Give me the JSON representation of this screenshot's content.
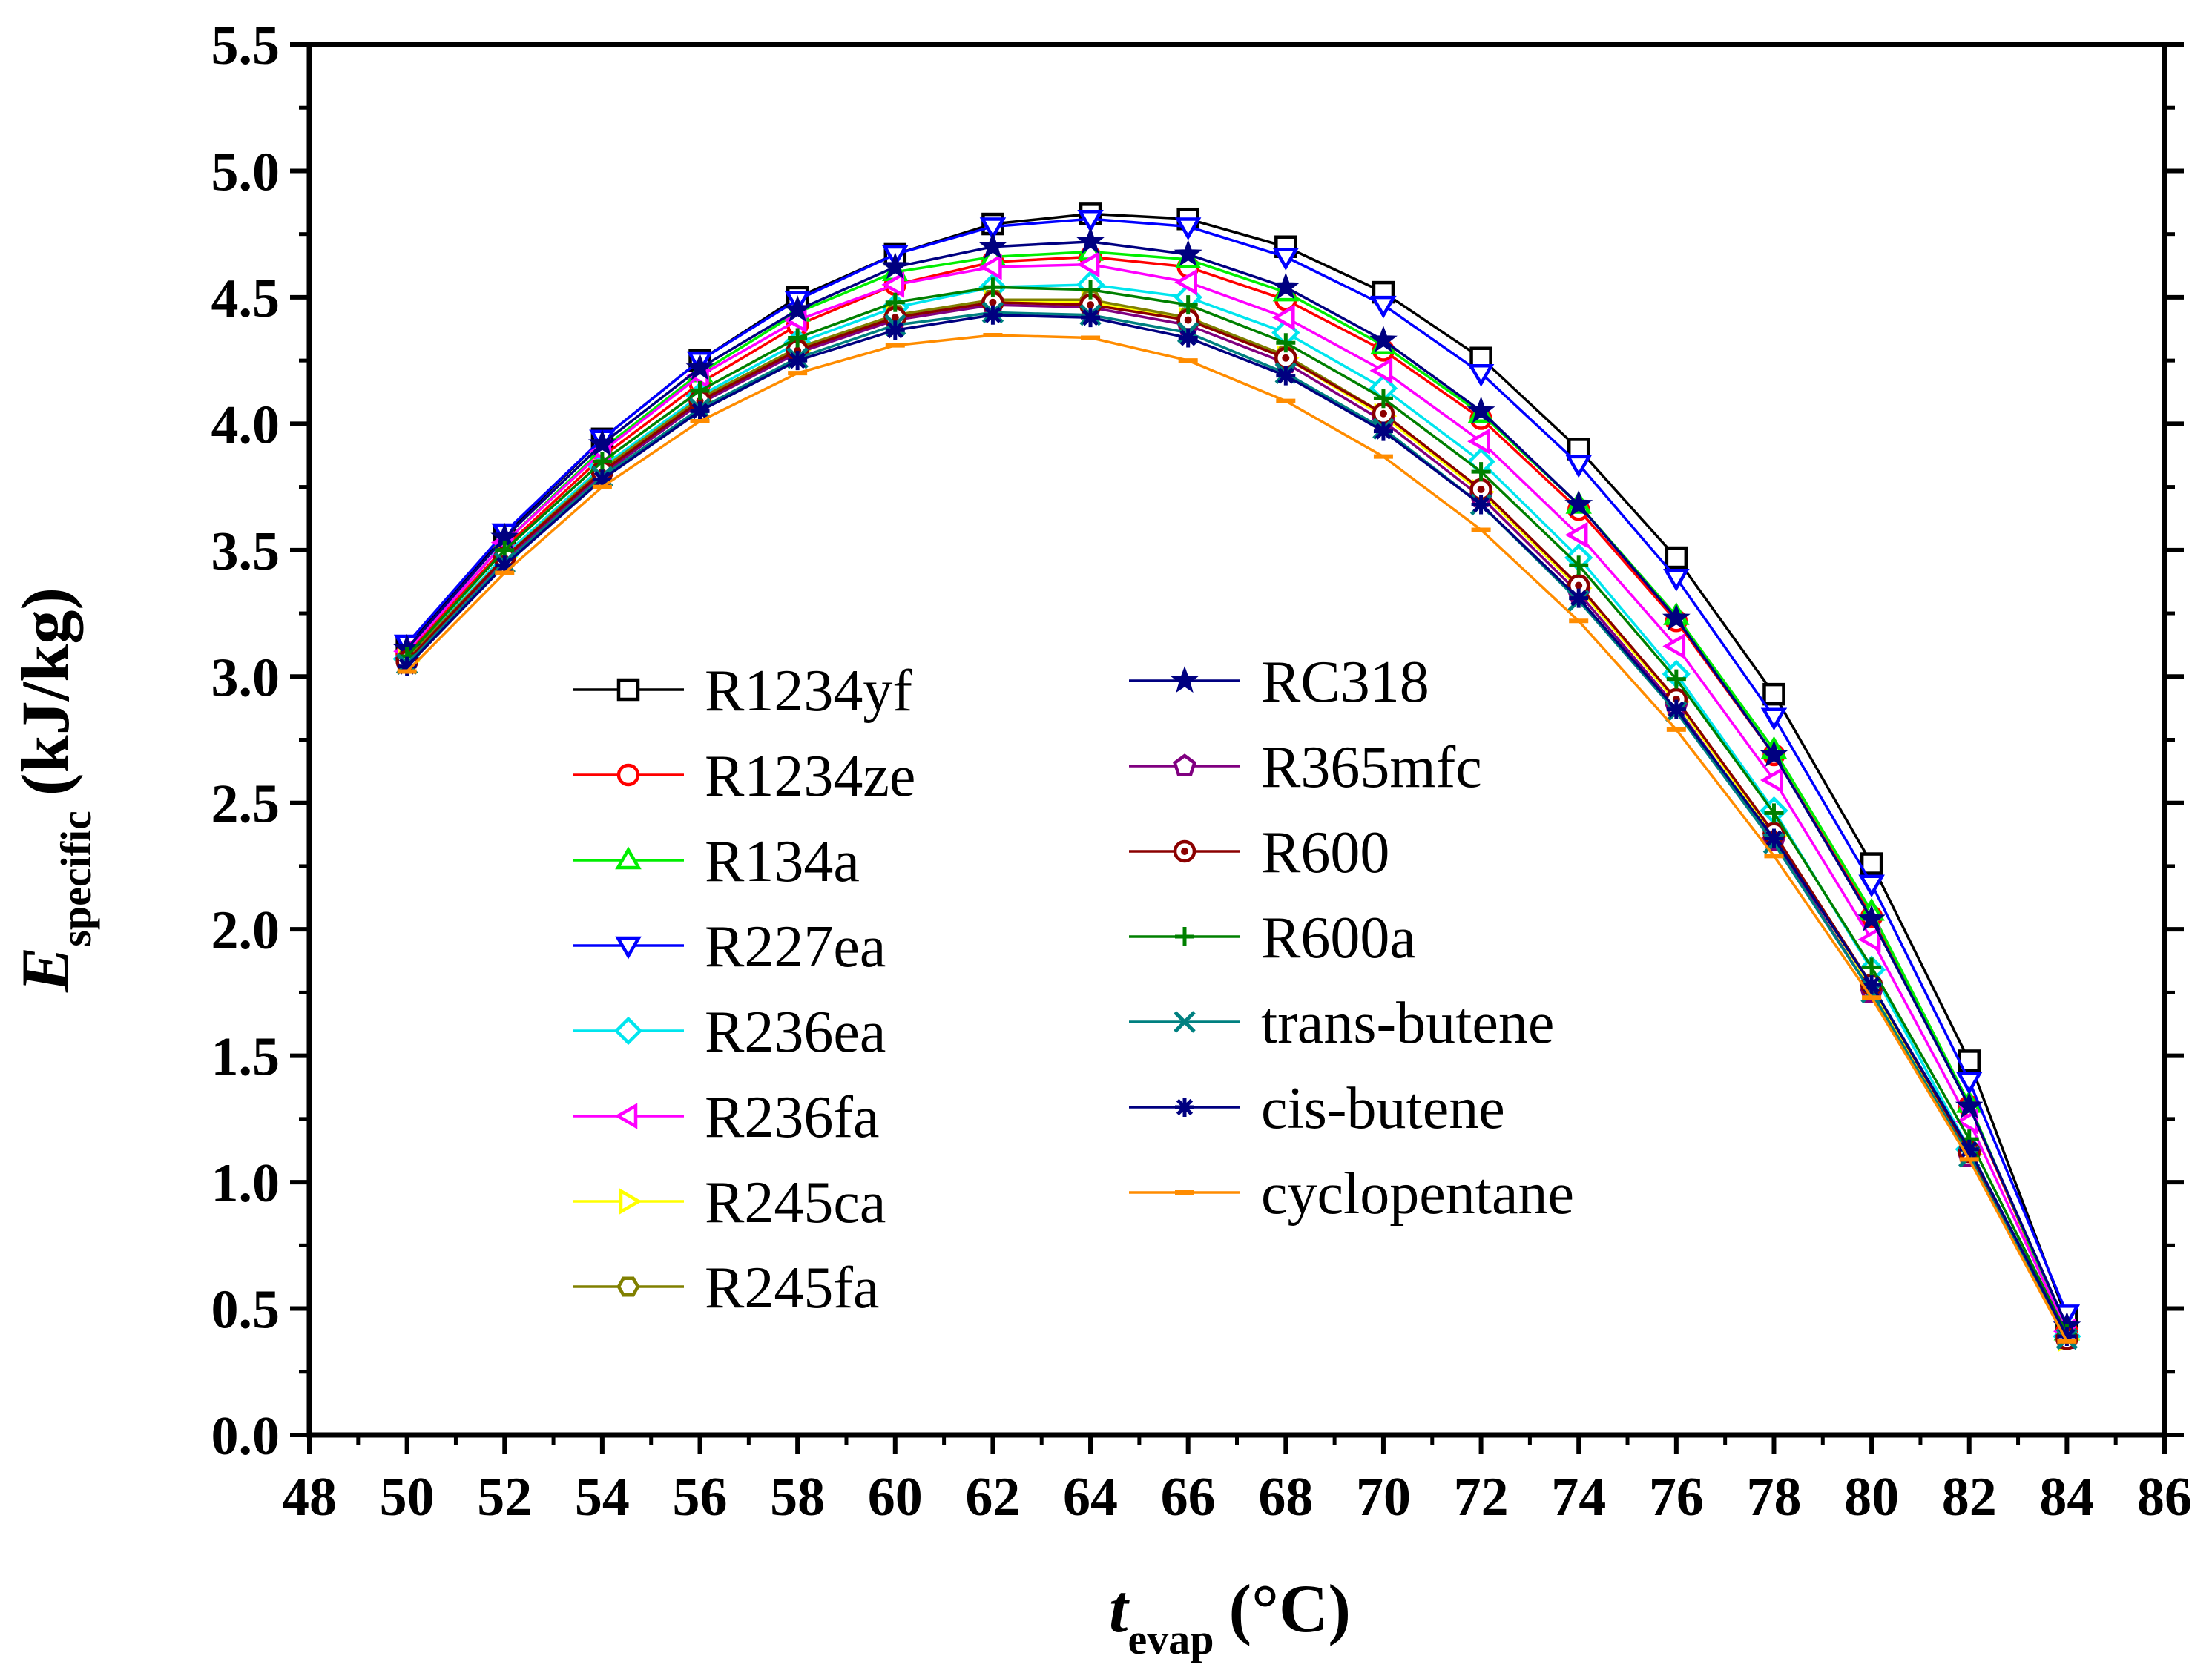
{
  "chart_data": {
    "type": "line",
    "xlabel": {
      "symbol": "t",
      "subscript": "evap",
      "unit": "(°C)"
    },
    "ylabel": {
      "symbol": "E",
      "subscript": "specific",
      "unit": "(kJ/kg)"
    },
    "xlim": [
      48,
      86
    ],
    "ylim": [
      0.0,
      5.5
    ],
    "x_major_ticks": [
      48,
      50,
      52,
      54,
      56,
      58,
      60,
      62,
      64,
      66,
      68,
      70,
      72,
      74,
      76,
      78,
      80,
      82,
      84,
      86
    ],
    "x_tick_labels": [
      "48",
      "50",
      "52",
      "54",
      "56",
      "58",
      "60",
      "62",
      "64",
      "66",
      "68",
      "70",
      "72",
      "74",
      "76",
      "78",
      "80",
      "82",
      "84",
      "86"
    ],
    "y_major_ticks": [
      0.0,
      0.5,
      1.0,
      1.5,
      2.0,
      2.5,
      3.0,
      3.5,
      4.0,
      4.5,
      5.0,
      5.5
    ],
    "y_tick_labels": [
      "0.0",
      "0.5",
      "1.0",
      "1.5",
      "2.0",
      "2.5",
      "3.0",
      "3.5",
      "4.0",
      "4.5",
      "5.0",
      "5.5"
    ],
    "grid": false,
    "legend_location": "center-left, two columns",
    "x": [
      50,
      52,
      54,
      56,
      58,
      60,
      62,
      64,
      66,
      68,
      70,
      72,
      74,
      76,
      78,
      80,
      82,
      84
    ],
    "series": [
      {
        "name": "R1234yf",
        "color": "#000000",
        "marker": "square",
        "values": [
          3.12,
          3.56,
          3.94,
          4.25,
          4.5,
          4.67,
          4.79,
          4.83,
          4.81,
          4.7,
          4.52,
          4.26,
          3.9,
          3.47,
          2.93,
          2.26,
          1.48,
          0.46
        ]
      },
      {
        "name": "R1234ze",
        "color": "#ff0000",
        "marker": "circle",
        "values": [
          3.09,
          3.51,
          3.87,
          4.16,
          4.39,
          4.55,
          4.64,
          4.66,
          4.62,
          4.49,
          4.29,
          4.02,
          3.66,
          3.22,
          2.69,
          2.05,
          1.3,
          0.41
        ]
      },
      {
        "name": "R134a",
        "color": "#00ee00",
        "marker": "triangle-up",
        "values": [
          3.1,
          3.53,
          3.9,
          4.2,
          4.44,
          4.6,
          4.66,
          4.68,
          4.65,
          4.52,
          4.31,
          4.04,
          3.68,
          3.24,
          2.71,
          2.07,
          1.31,
          0.41
        ]
      },
      {
        "name": "R227ea",
        "color": "#0000ff",
        "marker": "triangle-down",
        "values": [
          3.13,
          3.57,
          3.94,
          4.25,
          4.49,
          4.67,
          4.78,
          4.81,
          4.78,
          4.66,
          4.47,
          4.2,
          3.84,
          3.39,
          2.84,
          2.18,
          1.4,
          0.48
        ]
      },
      {
        "name": "R236ea",
        "color": "#00e5ee",
        "marker": "diamond",
        "values": [
          3.07,
          3.48,
          3.83,
          4.11,
          4.32,
          4.46,
          4.54,
          4.55,
          4.5,
          4.36,
          4.14,
          3.85,
          3.47,
          3.01,
          2.47,
          1.84,
          1.13,
          0.39
        ]
      },
      {
        "name": "R236fa",
        "color": "#ff00ff",
        "marker": "triangle-left",
        "values": [
          3.1,
          3.53,
          3.89,
          4.19,
          4.41,
          4.55,
          4.62,
          4.63,
          4.56,
          4.42,
          4.21,
          3.93,
          3.56,
          3.12,
          2.59,
          1.96,
          1.24,
          0.41
        ]
      },
      {
        "name": "R245ca",
        "color": "#ffff00",
        "marker": "triangle-right",
        "values": [
          3.06,
          3.47,
          3.81,
          4.09,
          4.29,
          4.42,
          4.48,
          4.48,
          4.41,
          4.26,
          4.03,
          3.73,
          3.35,
          2.9,
          2.37,
          1.77,
          1.11,
          0.38
        ]
      },
      {
        "name": "R245fa",
        "color": "#808000",
        "marker": "hexagon",
        "values": [
          3.07,
          3.47,
          3.82,
          4.1,
          4.3,
          4.43,
          4.49,
          4.49,
          4.42,
          4.27,
          4.04,
          3.74,
          3.36,
          2.91,
          2.38,
          1.78,
          1.12,
          0.38
        ]
      },
      {
        "name": "RC318",
        "color": "#000080",
        "marker": "star",
        "values": [
          3.11,
          3.55,
          3.92,
          4.22,
          4.45,
          4.62,
          4.7,
          4.72,
          4.67,
          4.54,
          4.33,
          4.05,
          3.68,
          3.23,
          2.69,
          2.04,
          1.3,
          0.43
        ]
      },
      {
        "name": "R365mfc",
        "color": "#800080",
        "marker": "pentagon",
        "values": [
          3.06,
          3.46,
          3.8,
          4.08,
          4.28,
          4.41,
          4.47,
          4.46,
          4.39,
          4.24,
          4.01,
          3.71,
          3.33,
          2.88,
          2.35,
          1.75,
          1.1,
          0.38
        ]
      },
      {
        "name": "R600",
        "color": "#8b0000",
        "marker": "circle-dot",
        "values": [
          3.06,
          3.47,
          3.81,
          4.09,
          4.29,
          4.42,
          4.48,
          4.47,
          4.41,
          4.26,
          4.04,
          3.74,
          3.36,
          2.91,
          2.38,
          1.78,
          1.12,
          0.38
        ]
      },
      {
        "name": "R600a",
        "color": "#008000",
        "marker": "plus",
        "values": [
          3.08,
          3.5,
          3.85,
          4.13,
          4.34,
          4.48,
          4.54,
          4.53,
          4.47,
          4.32,
          4.1,
          3.81,
          3.44,
          2.99,
          2.46,
          1.85,
          1.17,
          0.4
        ]
      },
      {
        "name": "trans-butene",
        "color": "#008080",
        "marker": "x",
        "values": [
          3.05,
          3.45,
          3.79,
          4.06,
          4.26,
          4.39,
          4.44,
          4.43,
          4.36,
          4.2,
          3.98,
          3.68,
          3.3,
          2.86,
          2.34,
          1.75,
          1.1,
          0.38
        ]
      },
      {
        "name": "cis-butene",
        "color": "#000080",
        "marker": "asterisk",
        "values": [
          3.04,
          3.44,
          3.78,
          4.05,
          4.25,
          4.37,
          4.43,
          4.42,
          4.34,
          4.19,
          3.97,
          3.68,
          3.31,
          2.87,
          2.36,
          1.78,
          1.13,
          0.39
        ]
      },
      {
        "name": "cyclopentane",
        "color": "#ff8c00",
        "marker": "dash",
        "values": [
          3.02,
          3.41,
          3.75,
          4.01,
          4.2,
          4.31,
          4.35,
          4.34,
          4.25,
          4.09,
          3.87,
          3.58,
          3.22,
          2.79,
          2.29,
          1.73,
          1.09,
          0.37
        ]
      }
    ]
  }
}
